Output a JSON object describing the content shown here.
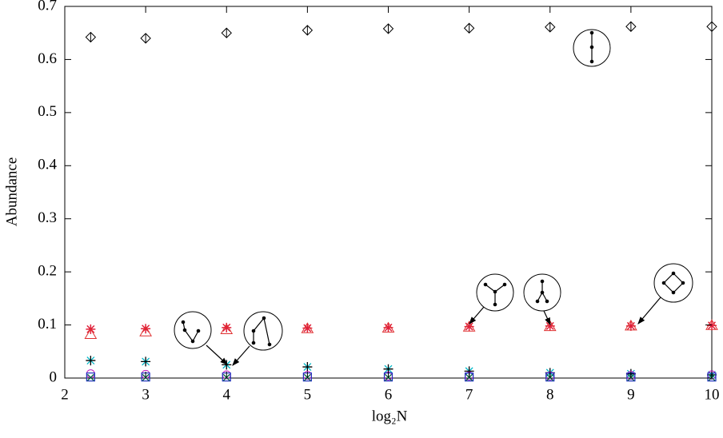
{
  "chart_data": {
    "type": "scatter",
    "ylabel": "Abundance",
    "xlabel": "log₂N",
    "x": [
      2.32,
      3,
      4,
      5,
      6,
      7,
      8,
      9,
      10
    ],
    "xlim": [
      2,
      10
    ],
    "xticks": [
      2,
      3,
      4,
      5,
      6,
      7,
      8,
      9,
      10
    ],
    "ylim": [
      0,
      0.7
    ],
    "yticks": [
      0,
      0.1,
      0.2,
      0.3,
      0.4,
      0.5,
      0.6,
      0.7
    ],
    "series": [
      {
        "color": "#000000",
        "marker": "diamond",
        "values": [
          0.642,
          0.64,
          0.65,
          0.655,
          0.658,
          0.659,
          0.661,
          0.662,
          0.662
        ]
      },
      {
        "color": "#e0203a",
        "marker": "star",
        "values": [
          0.092,
          0.093,
          0.095,
          0.094,
          0.095,
          0.097,
          0.098,
          0.098,
          0.099
        ]
      },
      {
        "color": "#e03030",
        "marker": "triangle",
        "values": [
          0.082,
          0.087,
          0.091,
          0.093,
          0.094,
          0.096,
          0.097,
          0.098,
          0.099
        ]
      },
      {
        "color": "#00b8c8",
        "marker": "asterisk",
        "values": [
          0.033,
          0.031,
          0.025,
          0.021,
          0.017,
          0.013,
          0.01,
          0.008,
          0.006
        ]
      },
      {
        "color": "#c020c0",
        "marker": "circle",
        "values": [
          0.008,
          0.007,
          0.006,
          0.005,
          0.004,
          0.004,
          0.004,
          0.005,
          0.006
        ]
      },
      {
        "color": "#2030c0",
        "marker": "square",
        "values": [
          0.002,
          0.002,
          0.002,
          0.002,
          0.002,
          0.002,
          0.002,
          0.002,
          0.002
        ]
      },
      {
        "color": "#006040",
        "marker": "x",
        "values": [
          0.001,
          0.001,
          0.001,
          0.001,
          0.001,
          0.001,
          0.001,
          0.001,
          0.001
        ]
      }
    ]
  }
}
